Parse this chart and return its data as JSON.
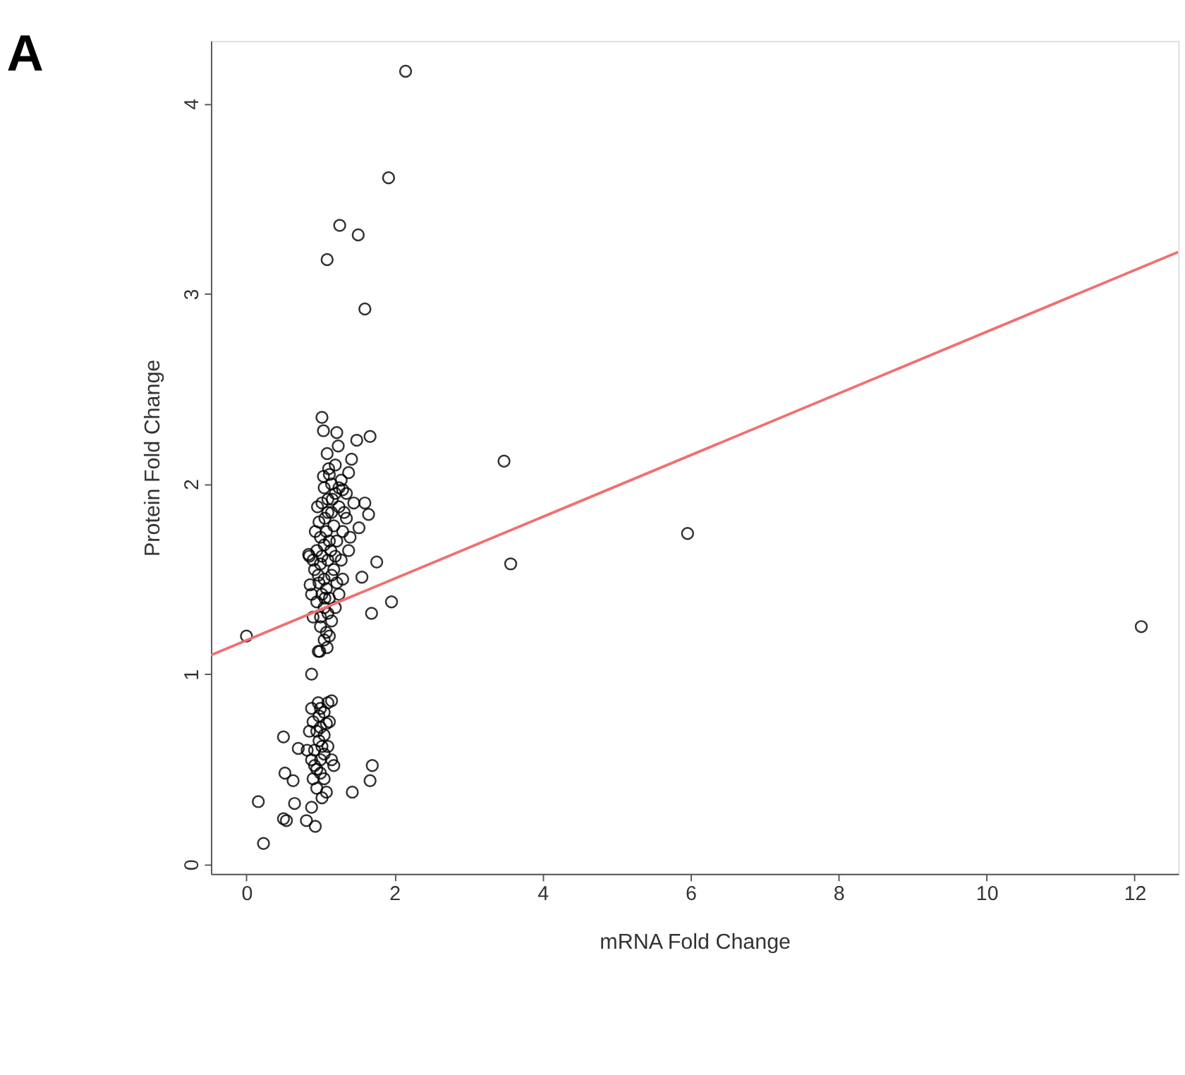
{
  "chart_data": {
    "type": "scatter",
    "title": "A",
    "xlabel": "mRNA Fold Change",
    "ylabel": "Protein Fold Change",
    "xlim": [
      -0.48,
      12.59
    ],
    "xticks": [
      0,
      2,
      4,
      6,
      8,
      10,
      12
    ],
    "ylim": [
      -0.05,
      4.33
    ],
    "yticks": [
      0,
      1,
      2,
      3,
      4
    ],
    "grid": false,
    "series": [
      {
        "color": "#000000",
        "marker": "circle",
        "x": [
          2.15,
          1.92,
          1.26,
          1.51,
          1.09,
          1.6,
          3.48,
          3.57,
          5.96,
          12.09,
          0,
          1.96,
          1.69,
          1.76,
          1.67,
          1.02,
          1.04,
          1.22,
          1.49,
          1.09,
          1.24,
          1.42,
          1.38,
          1.11,
          1.04,
          1.6,
          1.65,
          1.52,
          1.56,
          0.86,
          0.84,
          0.97,
          1.09,
          0.88,
          0.99,
          1.0,
          1.05,
          1.1,
          0.95,
          1.02,
          1.08,
          1.12,
          0.98,
          1.05,
          1.15,
          0.92,
          1.0,
          1.1,
          1.2,
          0.95,
          1.05,
          1.12,
          1.0,
          1.08,
          1.18,
          0.98,
          1.06,
          1.15,
          1.25,
          1.02,
          1.1,
          1.2,
          1.3,
          1.05,
          1.15,
          1.25,
          1.35,
          1.0,
          1.08,
          1.15,
          0.9,
          1.12,
          1.05,
          1.2,
          1.25,
          1.3,
          1.28,
          1.22,
          1.3,
          1.35,
          1.4,
          1.45,
          1.38,
          0.88,
          0.9,
          0.85,
          0.93,
          0.96,
          1.18,
          1.22,
          1.14,
          1.02,
          1.06,
          0.97,
          1.1,
          1.16,
          1.12,
          1.2,
          1.28,
          1.32,
          0.23,
          0.16,
          0.5,
          0.54,
          0.81,
          0.93,
          0.5,
          0.52,
          0.63,
          0.65,
          0.88,
          1.08,
          1.43,
          1.67,
          1.7,
          1.18,
          0.7,
          0.9,
          0.95,
          1.0,
          0.92,
          1.02,
          0.98,
          1.05,
          0.95,
          1.0,
          1.08,
          0.9,
          0.98,
          1.05,
          1.0,
          1.1,
          0.88,
          0.85,
          0.92,
          1.0,
          1.05,
          1.1,
          1.12,
          0.95,
          0.88,
          1.02,
          0.97,
          1.15,
          1.15,
          1.05,
          0.82
        ],
        "values": [
          4.17,
          3.61,
          3.36,
          3.31,
          3.18,
          2.92,
          2.12,
          1.58,
          1.74,
          1.25,
          1.2,
          1.38,
          1.32,
          1.59,
          2.25,
          2.35,
          2.28,
          2.27,
          2.23,
          2.16,
          2.2,
          2.13,
          2.06,
          2.08,
          2.04,
          1.9,
          1.84,
          1.77,
          1.51,
          1.47,
          1.63,
          1.12,
          1.14,
          1.0,
          1.12,
          1.3,
          1.35,
          1.32,
          1.38,
          1.42,
          1.45,
          1.4,
          1.48,
          1.5,
          1.52,
          1.55,
          1.58,
          1.6,
          1.62,
          1.65,
          1.68,
          1.7,
          1.72,
          1.75,
          1.78,
          1.8,
          1.82,
          1.85,
          1.88,
          1.9,
          1.92,
          1.95,
          1.97,
          1.98,
          2.0,
          1.98,
          1.95,
          1.25,
          1.22,
          1.28,
          1.3,
          1.2,
          1.18,
          1.35,
          1.42,
          1.5,
          1.6,
          1.7,
          1.75,
          1.82,
          1.72,
          1.9,
          1.65,
          1.42,
          1.6,
          1.62,
          1.75,
          1.88,
          1.55,
          1.48,
          1.65,
          1.62,
          1.4,
          1.52,
          1.85,
          1.92,
          2.05,
          2.1,
          2.02,
          1.85,
          0.11,
          0.33,
          0.24,
          0.23,
          0.23,
          0.2,
          0.67,
          0.48,
          0.44,
          0.32,
          0.3,
          0.38,
          0.38,
          0.44,
          0.52,
          0.52,
          0.61,
          0.45,
          0.5,
          0.55,
          0.6,
          0.62,
          0.65,
          0.68,
          0.7,
          0.72,
          0.74,
          0.75,
          0.78,
          0.8,
          0.82,
          0.85,
          0.82,
          0.7,
          0.52,
          0.48,
          0.58,
          0.62,
          0.75,
          0.4,
          0.55,
          0.35,
          0.85,
          0.86,
          0.55,
          0.45,
          0.6
        ]
      },
      {
        "color": "#f07070",
        "type": "line",
        "x": [
          -0.48,
          12.59
        ],
        "values": [
          1.1,
          3.22
        ]
      }
    ]
  }
}
